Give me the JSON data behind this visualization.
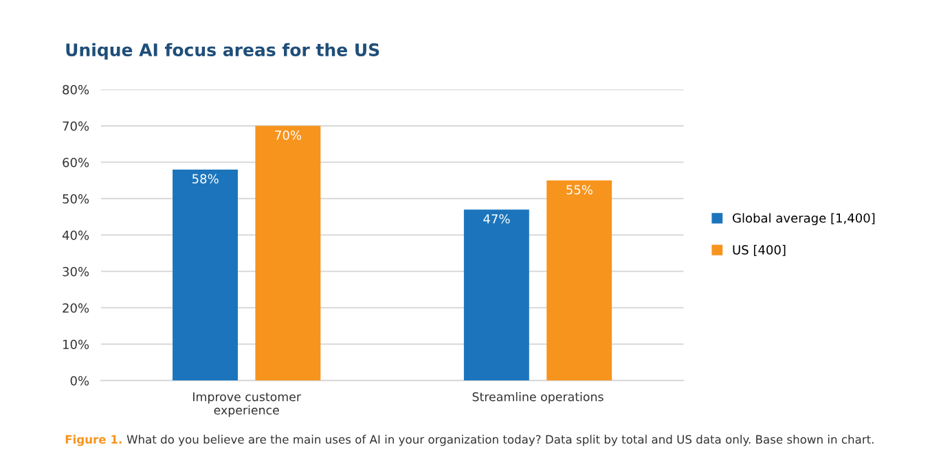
{
  "chart_data": {
    "type": "bar",
    "title": "Unique AI focus areas for the US",
    "categories": [
      "Improve customer\nexperience",
      "Streamline operations"
    ],
    "series": [
      {
        "name": "Global average [1,400]",
        "color": "#1c75bc",
        "values": [
          58,
          47
        ]
      },
      {
        "name": "US [400]",
        "color": "#f7941d",
        "values": [
          70,
          55
        ]
      }
    ],
    "ylim": [
      0,
      80
    ],
    "yticks": [
      {
        "value": 0,
        "label": "0%"
      },
      {
        "value": 10,
        "label": "10%"
      },
      {
        "value": 20,
        "label": "20%"
      },
      {
        "value": 30,
        "label": "30%"
      },
      {
        "value": 40,
        "label": "40%"
      },
      {
        "value": 50,
        "label": "50%"
      },
      {
        "value": 60,
        "label": "60%"
      },
      {
        "value": 70,
        "label": "70%"
      },
      {
        "value": 80,
        "label": "80%"
      }
    ],
    "value_labels": [
      [
        "58%",
        "47%"
      ],
      [
        "70%",
        "55%"
      ]
    ],
    "grid": "y",
    "legend": "right",
    "annotations": [
      "Figure 1.",
      "What do you believe are the main uses of AI in your organization today? Data split by total and US data only. Base shown in chart."
    ]
  }
}
